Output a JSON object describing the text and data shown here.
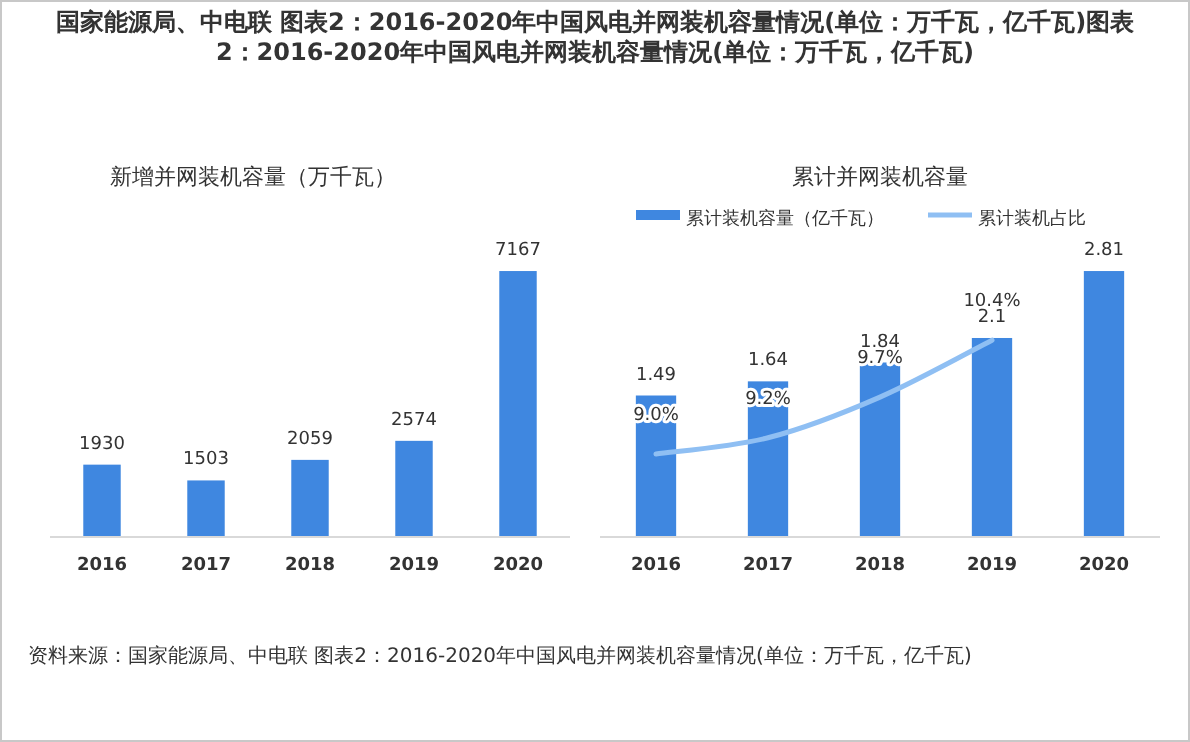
{
  "chart_data": [
    {
      "type": "bar",
      "title": "新增并网装机容量（万千瓦）",
      "categories": [
        "2016",
        "2017",
        "2018",
        "2019",
        "2020"
      ],
      "values": [
        1930,
        1503,
        2059,
        2574,
        7167
      ],
      "color": "#3f87e0",
      "data_labels": true,
      "tick_labels": "x",
      "legend": false,
      "annotations": [
        "国家能源局、中电联 图表2：2016-2020年中国风电并网装机容量情况(单位：万千瓦，亿千瓦)图表2：2016-2020年中国风电并网装机容量情况(单位：万千瓦，亿千瓦)",
        "资料来源：国家能源局、中电联 图表2：2016-2020年中国风电并网装机容量情况(单位：万千瓦，亿千瓦)"
      ]
    },
    {
      "type": "bar",
      "title": "累计并网装机容量",
      "categories": [
        "2016",
        "2017",
        "2018",
        "2019",
        "2020"
      ],
      "tick_labels": "x",
      "legend": "top",
      "data_labels": true,
      "series": [
        {
          "name": "累计装机容量（亿千瓦）",
          "color": "#3f87e0",
          "values": [
            1.49,
            1.64,
            1.84,
            2.1,
            2.81
          ]
        },
        {
          "name": "累计装机占比",
          "type": "line",
          "axis": "y2",
          "color": "#8fbff3",
          "values": [
            9.0,
            9.2,
            9.7,
            10.4,
            null
          ],
          "value_labels": [
            "9.0%",
            "9.2%",
            "9.7%",
            "10.4%",
            null
          ]
        }
      ]
    }
  ]
}
